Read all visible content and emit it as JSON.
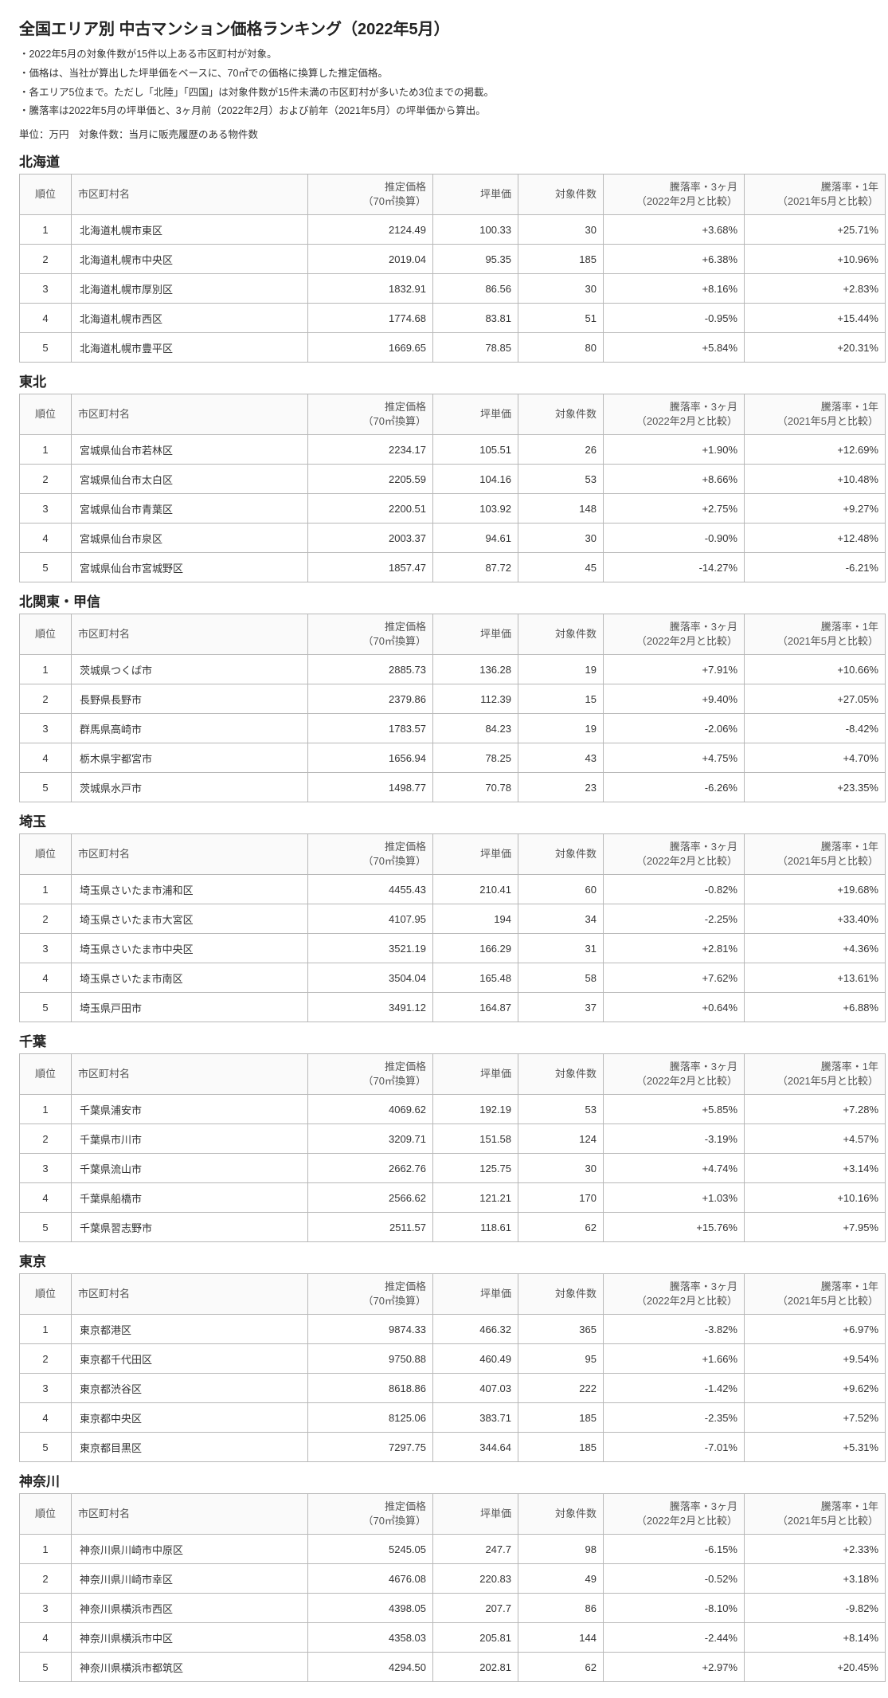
{
  "title": "全国エリア別 中古マンション価格ランキング（2022年5月）",
  "notes": [
    "・2022年5月の対象件数が15件以上ある市区町村が対象。",
    "・価格は、当社が算出した坪単価をベースに、70㎡での価格に換算した推定価格。",
    "・各エリア5位まで。ただし「北陸」「四国」は対象件数が15件未満の市区町村が多いため3位までの掲載。",
    "・騰落率は2022年5月の坪単価と、3ヶ月前（2022年2月）および前年（2021年5月）の坪単価から算出。"
  ],
  "unit_line": "単位：万円　対象件数：当月に販売履歴のある物件数",
  "columns": {
    "rank": "順位",
    "city": "市区町村名",
    "price": "推定価格\n（70㎡換算）",
    "tsubo": "坪単価",
    "count": "対象件数",
    "rate3m": "騰落率・3ヶ月\n（2022年2月と比較）",
    "rate1y": "騰落率・1年\n（2021年5月と比較）"
  },
  "regions": [
    {
      "name": "北海道",
      "rows": [
        {
          "rank": "1",
          "city": "北海道札幌市東区",
          "price": "2124.49",
          "tsubo": "100.33",
          "count": "30",
          "r3m": "+3.68%",
          "r1y": "+25.71%"
        },
        {
          "rank": "2",
          "city": "北海道札幌市中央区",
          "price": "2019.04",
          "tsubo": "95.35",
          "count": "185",
          "r3m": "+6.38%",
          "r1y": "+10.96%"
        },
        {
          "rank": "3",
          "city": "北海道札幌市厚別区",
          "price": "1832.91",
          "tsubo": "86.56",
          "count": "30",
          "r3m": "+8.16%",
          "r1y": "+2.83%"
        },
        {
          "rank": "4",
          "city": "北海道札幌市西区",
          "price": "1774.68",
          "tsubo": "83.81",
          "count": "51",
          "r3m": "-0.95%",
          "r1y": "+15.44%"
        },
        {
          "rank": "5",
          "city": "北海道札幌市豊平区",
          "price": "1669.65",
          "tsubo": "78.85",
          "count": "80",
          "r3m": "+5.84%",
          "r1y": "+20.31%"
        }
      ]
    },
    {
      "name": "東北",
      "rows": [
        {
          "rank": "1",
          "city": "宮城県仙台市若林区",
          "price": "2234.17",
          "tsubo": "105.51",
          "count": "26",
          "r3m": "+1.90%",
          "r1y": "+12.69%"
        },
        {
          "rank": "2",
          "city": "宮城県仙台市太白区",
          "price": "2205.59",
          "tsubo": "104.16",
          "count": "53",
          "r3m": "+8.66%",
          "r1y": "+10.48%"
        },
        {
          "rank": "3",
          "city": "宮城県仙台市青葉区",
          "price": "2200.51",
          "tsubo": "103.92",
          "count": "148",
          "r3m": "+2.75%",
          "r1y": "+9.27%"
        },
        {
          "rank": "4",
          "city": "宮城県仙台市泉区",
          "price": "2003.37",
          "tsubo": "94.61",
          "count": "30",
          "r3m": "-0.90%",
          "r1y": "+12.48%"
        },
        {
          "rank": "5",
          "city": "宮城県仙台市宮城野区",
          "price": "1857.47",
          "tsubo": "87.72",
          "count": "45",
          "r3m": "-14.27%",
          "r1y": "-6.21%"
        }
      ]
    },
    {
      "name": "北関東・甲信",
      "rows": [
        {
          "rank": "1",
          "city": "茨城県つくば市",
          "price": "2885.73",
          "tsubo": "136.28",
          "count": "19",
          "r3m": "+7.91%",
          "r1y": "+10.66%"
        },
        {
          "rank": "2",
          "city": "長野県長野市",
          "price": "2379.86",
          "tsubo": "112.39",
          "count": "15",
          "r3m": "+9.40%",
          "r1y": "+27.05%"
        },
        {
          "rank": "3",
          "city": "群馬県高崎市",
          "price": "1783.57",
          "tsubo": "84.23",
          "count": "19",
          "r3m": "-2.06%",
          "r1y": "-8.42%"
        },
        {
          "rank": "4",
          "city": "栃木県宇都宮市",
          "price": "1656.94",
          "tsubo": "78.25",
          "count": "43",
          "r3m": "+4.75%",
          "r1y": "+4.70%"
        },
        {
          "rank": "5",
          "city": "茨城県水戸市",
          "price": "1498.77",
          "tsubo": "70.78",
          "count": "23",
          "r3m": "-6.26%",
          "r1y": "+23.35%"
        }
      ]
    },
    {
      "name": "埼玉",
      "rows": [
        {
          "rank": "1",
          "city": "埼玉県さいたま市浦和区",
          "price": "4455.43",
          "tsubo": "210.41",
          "count": "60",
          "r3m": "-0.82%",
          "r1y": "+19.68%"
        },
        {
          "rank": "2",
          "city": "埼玉県さいたま市大宮区",
          "price": "4107.95",
          "tsubo": "194",
          "count": "34",
          "r3m": "-2.25%",
          "r1y": "+33.40%"
        },
        {
          "rank": "3",
          "city": "埼玉県さいたま市中央区",
          "price": "3521.19",
          "tsubo": "166.29",
          "count": "31",
          "r3m": "+2.81%",
          "r1y": "+4.36%"
        },
        {
          "rank": "4",
          "city": "埼玉県さいたま市南区",
          "price": "3504.04",
          "tsubo": "165.48",
          "count": "58",
          "r3m": "+7.62%",
          "r1y": "+13.61%"
        },
        {
          "rank": "5",
          "city": "埼玉県戸田市",
          "price": "3491.12",
          "tsubo": "164.87",
          "count": "37",
          "r3m": "+0.64%",
          "r1y": "+6.88%"
        }
      ]
    },
    {
      "name": "千葉",
      "rows": [
        {
          "rank": "1",
          "city": "千葉県浦安市",
          "price": "4069.62",
          "tsubo": "192.19",
          "count": "53",
          "r3m": "+5.85%",
          "r1y": "+7.28%"
        },
        {
          "rank": "2",
          "city": "千葉県市川市",
          "price": "3209.71",
          "tsubo": "151.58",
          "count": "124",
          "r3m": "-3.19%",
          "r1y": "+4.57%"
        },
        {
          "rank": "3",
          "city": "千葉県流山市",
          "price": "2662.76",
          "tsubo": "125.75",
          "count": "30",
          "r3m": "+4.74%",
          "r1y": "+3.14%"
        },
        {
          "rank": "4",
          "city": "千葉県船橋市",
          "price": "2566.62",
          "tsubo": "121.21",
          "count": "170",
          "r3m": "+1.03%",
          "r1y": "+10.16%"
        },
        {
          "rank": "5",
          "city": "千葉県習志野市",
          "price": "2511.57",
          "tsubo": "118.61",
          "count": "62",
          "r3m": "+15.76%",
          "r1y": "+7.95%"
        }
      ]
    },
    {
      "name": "東京",
      "rows": [
        {
          "rank": "1",
          "city": "東京都港区",
          "price": "9874.33",
          "tsubo": "466.32",
          "count": "365",
          "r3m": "-3.82%",
          "r1y": "+6.97%"
        },
        {
          "rank": "2",
          "city": "東京都千代田区",
          "price": "9750.88",
          "tsubo": "460.49",
          "count": "95",
          "r3m": "+1.66%",
          "r1y": "+9.54%"
        },
        {
          "rank": "3",
          "city": "東京都渋谷区",
          "price": "8618.86",
          "tsubo": "407.03",
          "count": "222",
          "r3m": "-1.42%",
          "r1y": "+9.62%"
        },
        {
          "rank": "4",
          "city": "東京都中央区",
          "price": "8125.06",
          "tsubo": "383.71",
          "count": "185",
          "r3m": "-2.35%",
          "r1y": "+7.52%"
        },
        {
          "rank": "5",
          "city": "東京都目黒区",
          "price": "7297.75",
          "tsubo": "344.64",
          "count": "185",
          "r3m": "-7.01%",
          "r1y": "+5.31%"
        }
      ]
    },
    {
      "name": "神奈川",
      "rows": [
        {
          "rank": "1",
          "city": "神奈川県川崎市中原区",
          "price": "5245.05",
          "tsubo": "247.7",
          "count": "98",
          "r3m": "-6.15%",
          "r1y": "+2.33%"
        },
        {
          "rank": "2",
          "city": "神奈川県川崎市幸区",
          "price": "4676.08",
          "tsubo": "220.83",
          "count": "49",
          "r3m": "-0.52%",
          "r1y": "+3.18%"
        },
        {
          "rank": "3",
          "city": "神奈川県横浜市西区",
          "price": "4398.05",
          "tsubo": "207.7",
          "count": "86",
          "r3m": "-8.10%",
          "r1y": "-9.82%"
        },
        {
          "rank": "4",
          "city": "神奈川県横浜市中区",
          "price": "4358.03",
          "tsubo": "205.81",
          "count": "144",
          "r3m": "-2.44%",
          "r1y": "+8.14%"
        },
        {
          "rank": "5",
          "city": "神奈川県横浜市都筑区",
          "price": "4294.50",
          "tsubo": "202.81",
          "count": "62",
          "r3m": "+2.97%",
          "r1y": "+20.45%"
        }
      ]
    }
  ]
}
